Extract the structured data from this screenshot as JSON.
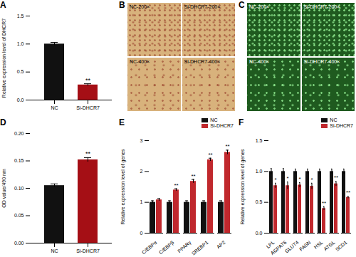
{
  "chart_data": [
    {
      "panel": "A",
      "type": "bar",
      "y_label": "Relative expression level of DHCR7",
      "categories": [
        "NC",
        "Si-DHCR7"
      ],
      "values": [
        1.0,
        0.27
      ],
      "errors": [
        0.03,
        0.02
      ],
      "colors": [
        "#111111",
        "#a50f15"
      ],
      "annotations": [
        null,
        "**"
      ],
      "ylim": [
        0,
        1.5
      ],
      "yticks": [
        {
          "value": 0,
          "label": "0.0"
        },
        {
          "value": 0.5,
          "label": "0.5"
        },
        {
          "value": 1,
          "label": "1.0"
        },
        {
          "value": 1.5,
          "label": "1.5"
        }
      ]
    },
    {
      "panel": "B",
      "type": "image",
      "labels": [
        "NC-200×",
        "Si-DHCR7-200×",
        "NC-400×",
        "Si-DHCR7-400×"
      ],
      "color": "#d8b27c"
    },
    {
      "panel": "C",
      "type": "image",
      "labels": [
        "NC-200×",
        "Si-DHCR7-200×",
        "NC-400×",
        "Si-DHCR7-400×"
      ],
      "color": "#1f5a1f"
    },
    {
      "panel": "D",
      "type": "bar",
      "y_label": "OD value/490 nm",
      "categories": [
        "NC",
        "Si-DHCR7"
      ],
      "values": [
        0.105,
        0.152
      ],
      "errors": [
        0.003,
        0.004
      ],
      "colors": [
        "#111111",
        "#a50f15"
      ],
      "annotations": [
        null,
        "**"
      ],
      "ylim": [
        0,
        0.2
      ],
      "yticks": [
        {
          "value": 0,
          "label": "0.00"
        },
        {
          "value": 0.05,
          "label": "0.05"
        },
        {
          "value": 0.1,
          "label": "0.10"
        },
        {
          "value": 0.15,
          "label": "0.15"
        },
        {
          "value": 0.2,
          "label": "0.20"
        }
      ]
    },
    {
      "panel": "E",
      "type": "grouped_bar",
      "y_label": "Relative expression level of genes",
      "categories": [
        "C/EBPα",
        "C/EBPβ",
        "PPARγ",
        "SREBP1",
        "AP2"
      ],
      "series": [
        {
          "name": "NC",
          "color": "#111111",
          "values": [
            1.0,
            1.0,
            1.0,
            1.0,
            1.0
          ],
          "errors": [
            0.05,
            0.05,
            0.05,
            0.05,
            0.05
          ],
          "annotations": [
            null,
            null,
            null,
            null,
            null
          ]
        },
        {
          "name": "Si-DHCR7",
          "color": "#c0282d",
          "values": [
            1.08,
            1.4,
            1.68,
            2.38,
            2.62
          ],
          "errors": [
            0.04,
            0.04,
            0.06,
            0.05,
            0.07
          ],
          "annotations": [
            null,
            "**",
            "**",
            "**",
            "**"
          ]
        }
      ],
      "legend": "top-right",
      "ylim": [
        0,
        3
      ],
      "yticks": [
        0,
        1,
        2,
        3
      ]
    },
    {
      "panel": "F",
      "type": "grouped_bar",
      "y_label": "Relative expression level of genes",
      "categories": [
        "LPL",
        "AGPAT6",
        "GLUT4",
        "FASN",
        "HSL",
        "ATGL",
        "SCD1"
      ],
      "series": [
        {
          "name": "NC",
          "color": "#111111",
          "values": [
            1.0,
            1.0,
            1.0,
            1.0,
            1.0,
            1.0,
            1.0
          ],
          "errors": [
            0.05,
            0.05,
            0.04,
            0.04,
            0.04,
            0.04,
            0.04
          ],
          "annotations": [
            null,
            null,
            null,
            null,
            null,
            null,
            null
          ]
        },
        {
          "name": "Si-DHCR7",
          "color": "#c0282d",
          "values": [
            0.77,
            0.77,
            0.78,
            0.76,
            0.4,
            0.8,
            0.58
          ],
          "errors": [
            0.04,
            0.06,
            0.04,
            0.05,
            0.03,
            0.04,
            0.02
          ],
          "annotations": [
            "*",
            "*",
            "*",
            "*",
            "**",
            "**",
            "**"
          ]
        }
      ],
      "legend": "top-right",
      "ylim": [
        0,
        1.5
      ],
      "yticks": [
        {
          "value": 0,
          "label": "0.0"
        },
        {
          "value": 0.5,
          "label": "0.5"
        },
        {
          "value": 1,
          "label": "1.0"
        },
        {
          "value": 1.5,
          "label": "1.5"
        }
      ]
    }
  ]
}
